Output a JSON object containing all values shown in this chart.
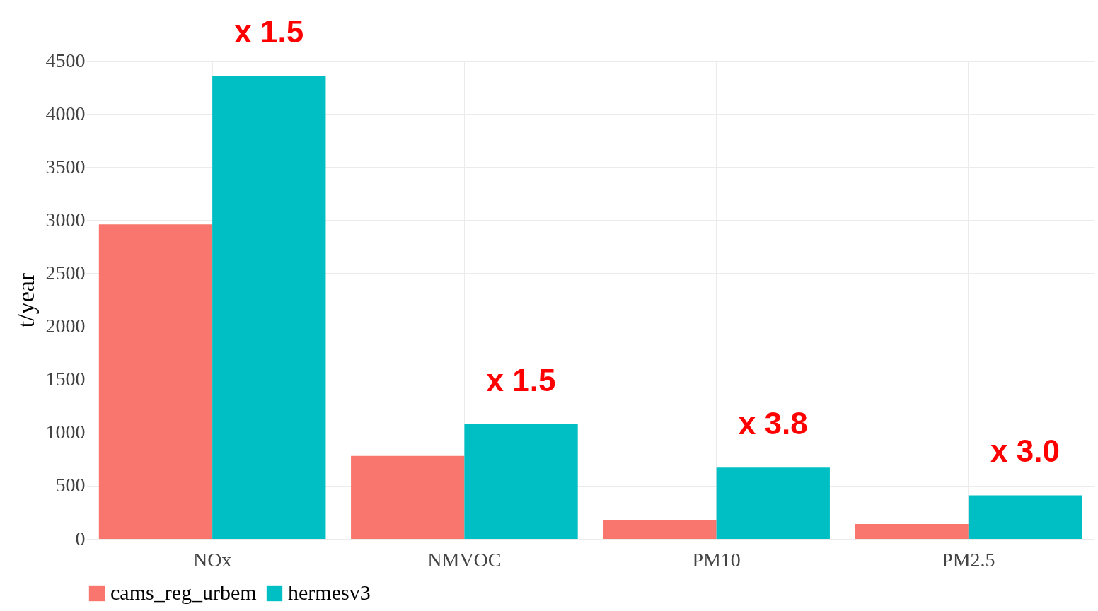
{
  "chart_data": {
    "type": "bar",
    "ylabel": "t/year",
    "categories": [
      "NOx",
      "NMVOC",
      "PM10",
      "PM2.5"
    ],
    "series": [
      {
        "name": "cams_reg_urbem",
        "color": "#f8766d",
        "values": [
          2960,
          780,
          180,
          140
        ]
      },
      {
        "name": "hermesv3",
        "color": "#00bfc4",
        "values": [
          4360,
          1080,
          670,
          410
        ]
      }
    ],
    "ylim": [
      0,
      4500
    ],
    "yticks": [
      0,
      500,
      1000,
      1500,
      2000,
      2500,
      3000,
      3500,
      4000,
      4500
    ],
    "grid": true,
    "legend": "bottom",
    "annotations": [
      "x 1.5",
      "x 1.5",
      "x 3.8",
      "x 3.0"
    ]
  }
}
